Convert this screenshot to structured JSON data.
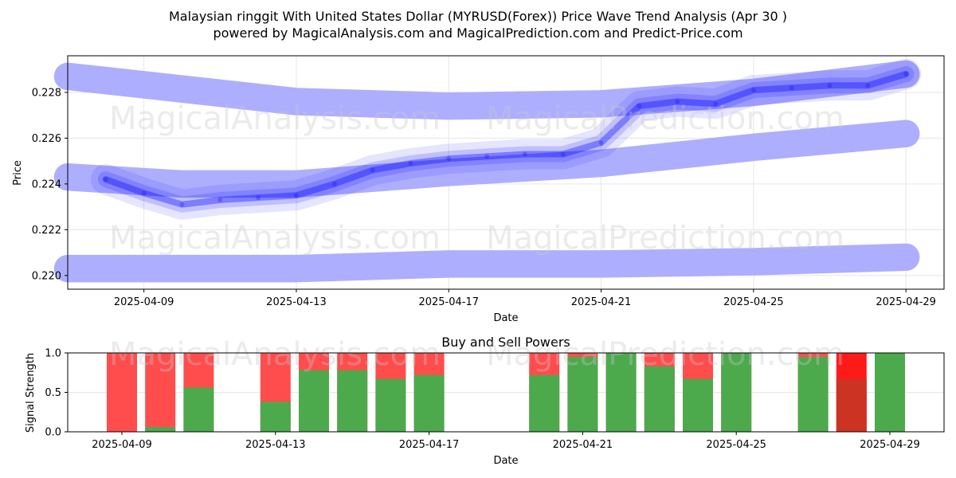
{
  "title_line1": "Malaysian ringgit With United States Dollar (MYRUSD(Forex)) Price Wave Trend Analysis (Apr 30 )",
  "title_line2": "powered by MagicalAnalysis.com and MagicalPrediction.com and Predict-Price.com",
  "watermarks": [
    "MagicalAnalysis.com",
    "MagicalPrediction.com"
  ],
  "colors": {
    "wave": "#0000ff",
    "band": "#aaaaff",
    "buy": "#4caa4c",
    "sell": "#ff4d4d",
    "sell_strong": "#ff1a1a",
    "buy_dark": "#cc3322"
  },
  "chart_data": [
    {
      "type": "line",
      "title": "",
      "xlabel": "Date",
      "ylabel": "Price",
      "xlim": [
        "2025-04-07",
        "2025-04-30"
      ],
      "ylim": [
        0.2194,
        0.2296
      ],
      "x_ticks": [
        "2025-04-09",
        "2025-04-13",
        "2025-04-17",
        "2025-04-21",
        "2025-04-25",
        "2025-04-29"
      ],
      "y_ticks": [
        0.22,
        0.222,
        0.224,
        0.226,
        0.228
      ],
      "y_tick_labels": [
        "0.220",
        "0.222",
        "0.224",
        "0.226",
        "0.228"
      ],
      "grid": true,
      "bands": [
        {
          "name": "upper",
          "x": [
            "2025-04-07",
            "2025-04-13",
            "2025-04-17",
            "2025-04-21",
            "2025-04-25",
            "2025-04-29"
          ],
          "center": [
            0.2287,
            0.2276,
            0.2274,
            0.2275,
            0.228,
            0.2288
          ],
          "width": [
            0.0012,
            0.0012,
            0.0012,
            0.0012,
            0.0012,
            0.0012
          ]
        },
        {
          "name": "middle",
          "x": [
            "2025-04-07",
            "2025-04-10",
            "2025-04-13",
            "2025-04-17",
            "2025-04-21",
            "2025-04-25",
            "2025-04-29"
          ],
          "center": [
            0.2243,
            0.224,
            0.224,
            0.2245,
            0.2249,
            0.2256,
            0.2262
          ],
          "width": [
            0.0012,
            0.0012,
            0.0012,
            0.0012,
            0.0012,
            0.0012,
            0.0012
          ]
        },
        {
          "name": "lower",
          "x": [
            "2025-04-07",
            "2025-04-13",
            "2025-04-17",
            "2025-04-21",
            "2025-04-25",
            "2025-04-29"
          ],
          "center": [
            0.2203,
            0.2203,
            0.2205,
            0.2205,
            0.2206,
            0.2208
          ],
          "width": [
            0.0012,
            0.0012,
            0.0012,
            0.0012,
            0.0012,
            0.0012
          ]
        }
      ],
      "series": [
        {
          "name": "wave",
          "x": [
            "2025-04-08",
            "2025-04-09",
            "2025-04-10",
            "2025-04-11",
            "2025-04-12",
            "2025-04-13",
            "2025-04-14",
            "2025-04-15",
            "2025-04-16",
            "2025-04-17",
            "2025-04-18",
            "2025-04-19",
            "2025-04-20",
            "2025-04-21",
            "2025-04-22",
            "2025-04-23",
            "2025-04-24",
            "2025-04-25",
            "2025-04-26",
            "2025-04-27",
            "2025-04-28",
            "2025-04-29"
          ],
          "values": [
            0.2242,
            0.2236,
            0.2231,
            0.2233,
            0.2234,
            0.2235,
            0.224,
            0.2246,
            0.2249,
            0.2251,
            0.2252,
            0.2253,
            0.2253,
            0.2258,
            0.2274,
            0.2276,
            0.2275,
            0.2281,
            0.2282,
            0.2283,
            0.2283,
            0.2288
          ]
        }
      ]
    },
    {
      "type": "bar",
      "title": "Buy and Sell Powers",
      "xlabel": "Date",
      "ylabel": "Signal Strength",
      "ylim": [
        0,
        1
      ],
      "y_ticks": [
        0.0,
        0.5,
        1.0
      ],
      "y_tick_labels": [
        "0.0",
        "0.5",
        "1.0"
      ],
      "x_ticks": [
        "2025-04-09",
        "2025-04-13",
        "2025-04-17",
        "2025-04-21",
        "2025-04-25",
        "2025-04-29"
      ],
      "dates": [
        "2025-04-09",
        "2025-04-10",
        "2025-04-11",
        "2025-04-13",
        "2025-04-14",
        "2025-04-15",
        "2025-04-16",
        "2025-04-17",
        "2025-04-20",
        "2025-04-21",
        "2025-04-22",
        "2025-04-23",
        "2025-04-24",
        "2025-04-25",
        "2025-04-27",
        "2025-04-28",
        "2025-04-29"
      ],
      "buy": [
        0.0,
        0.06,
        0.56,
        0.38,
        0.78,
        0.78,
        0.67,
        0.72,
        0.72,
        0.95,
        1.0,
        0.83,
        0.67,
        1.0,
        0.95,
        0.67,
        1.0
      ],
      "sell": [
        1.0,
        1.0,
        1.0,
        1.0,
        1.0,
        1.0,
        1.0,
        1.0,
        1.0,
        1.0,
        1.0,
        1.0,
        1.0,
        1.0,
        1.0,
        1.0,
        1.0
      ]
    }
  ]
}
